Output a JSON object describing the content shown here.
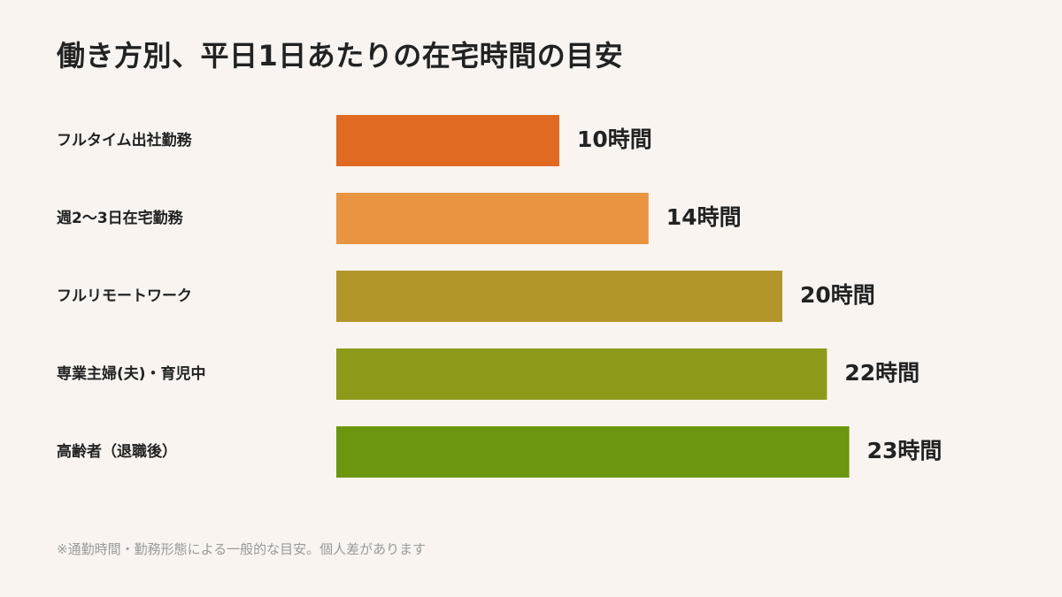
{
  "title": "働き方別、平日1日あたりの在宅時間の目安",
  "note": "※通勤時間・勤務形態による一般的な目安。個人差があります",
  "chart_data": {
    "type": "bar",
    "orientation": "horizontal",
    "title": "働き方別、平日1日あたりの在宅時間の目安",
    "categories": [
      "フルタイム出社勤務",
      "週2〜3日在宅勤務",
      "フルリモートワーク",
      "専業主婦(夫)・育児中",
      "高齢者（退職後）"
    ],
    "values": [
      10,
      14,
      20,
      22,
      23
    ],
    "value_labels": [
      "10時間",
      "14時間",
      "20時間",
      "22時間",
      "23時間"
    ],
    "colors": [
      "#e06a22",
      "#e89440",
      "#b3962a",
      "#8e9a1a",
      "#6b960e"
    ],
    "xlim": [
      0,
      24
    ],
    "grid": false,
    "legend": "none"
  }
}
